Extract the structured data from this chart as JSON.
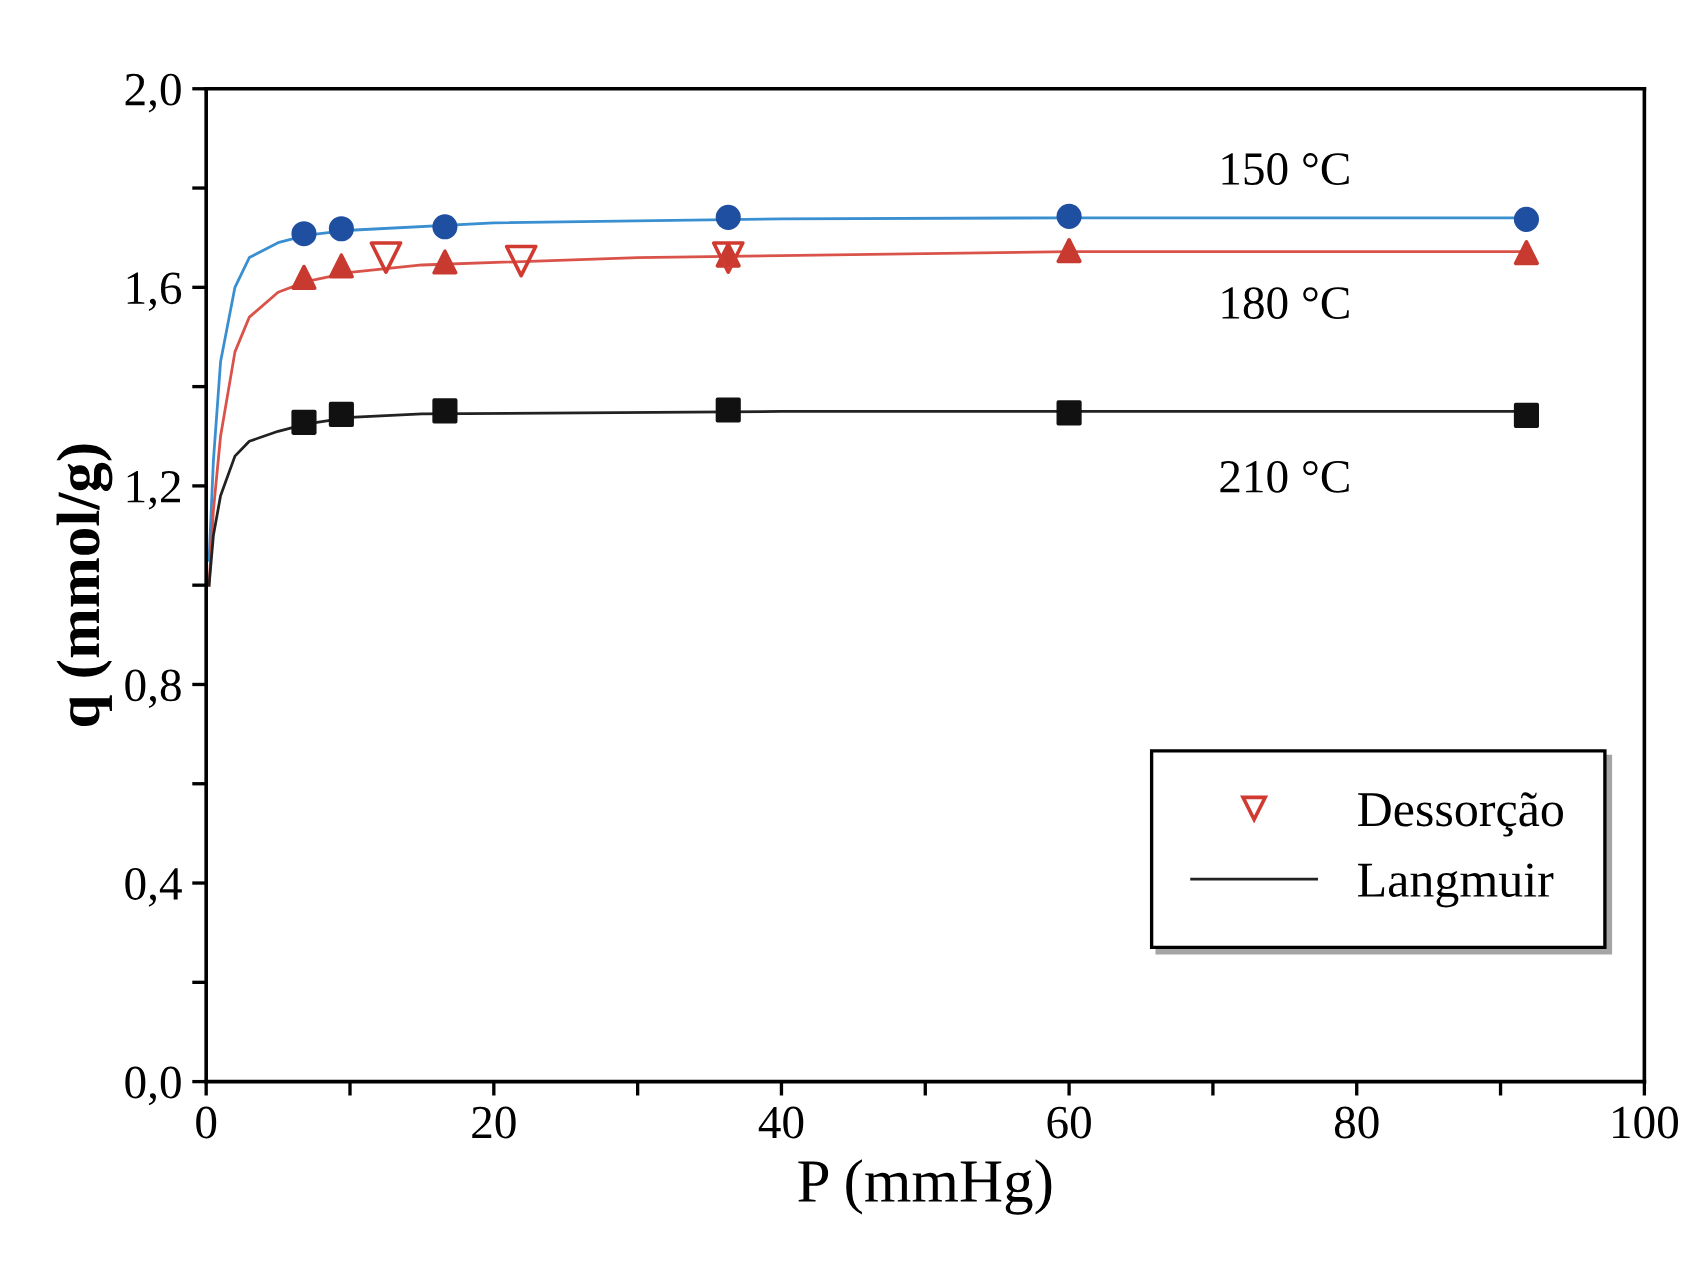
{
  "chart_data": {
    "type": "scatter",
    "xlabel": "P (mmHg)",
    "ylabel": "q (mmol/g)",
    "xlim": [
      0,
      100
    ],
    "xticks": [
      0,
      {
        "value": 10,
        "label": null
      },
      20,
      {
        "value": 30,
        "label": null
      },
      40,
      {
        "value": 50,
        "label": null
      },
      60,
      {
        "value": 70,
        "label": null
      },
      80,
      {
        "value": 90,
        "label": null
      },
      100
    ],
    "ylim": [
      0,
      2.0
    ],
    "yticks": [
      {
        "value": 0,
        "label": "0,0"
      },
      {
        "value": 0.2,
        "label": null
      },
      {
        "value": 0.4,
        "label": "0,4"
      },
      {
        "value": 0.6,
        "label": null
      },
      {
        "value": 0.8,
        "label": "0,8"
      },
      {
        "value": 1.0,
        "label": null
      },
      {
        "value": 1.2,
        "label": "1,2"
      },
      {
        "value": 1.4,
        "label": null
      },
      {
        "value": 1.6,
        "label": "1,6"
      },
      {
        "value": 1.8,
        "label": null
      },
      {
        "value": 2.0,
        "label": "2,0"
      }
    ],
    "grid": false,
    "legend": "bottom right",
    "series": [
      {
        "name": "Dessorção",
        "color": "#d03a30",
        "marker": "triangle_down",
        "x": [
          12.5,
          21.9,
          36.3
        ],
        "values": [
          1.66,
          1.653,
          1.66
        ]
      },
      {
        "type": "line",
        "color": "#3a8fd0",
        "marker": "none",
        "line_style": "solid",
        "x": [
          0.2,
          0.5,
          1,
          2,
          3,
          5,
          7,
          10,
          20,
          40,
          60,
          92
        ],
        "values": [
          1.05,
          1.25,
          1.45,
          1.6,
          1.66,
          1.69,
          1.705,
          1.715,
          1.73,
          1.738,
          1.74,
          1.74
        ]
      },
      {
        "type": "line",
        "color": "#d9534a",
        "marker": "none",
        "line_style": "solid",
        "x": [
          0.2,
          0.5,
          1,
          2,
          3,
          5,
          7,
          10,
          15,
          30,
          60,
          92
        ],
        "values": [
          1.0,
          1.15,
          1.3,
          1.47,
          1.54,
          1.59,
          1.612,
          1.63,
          1.645,
          1.66,
          1.672,
          1.672
        ]
      },
      {
        "type": "line",
        "name": "Langmuir",
        "color": "#222222",
        "marker": "none",
        "line_style": "solid",
        "x": [
          0.2,
          0.5,
          1,
          2,
          3,
          5,
          7,
          10,
          15,
          40,
          92
        ],
        "values": [
          1.0,
          1.1,
          1.18,
          1.26,
          1.29,
          1.31,
          1.325,
          1.338,
          1.345,
          1.35,
          1.35
        ]
      },
      {
        "color": "#1f4fa0",
        "marker": "circle",
        "x": [
          6.8,
          9.4,
          16.6,
          36.3,
          60.0,
          91.8
        ],
        "values": [
          1.708,
          1.718,
          1.722,
          1.741,
          1.743,
          1.737
        ]
      },
      {
        "color": "#c83a30",
        "marker": "triangle",
        "x": [
          6.8,
          9.4,
          16.6,
          36.3,
          60.0,
          91.8
        ],
        "values": [
          1.62,
          1.643,
          1.651,
          1.665,
          1.674,
          1.67
        ]
      },
      {
        "color": "#111111",
        "marker": "square",
        "x": [
          6.8,
          9.4,
          16.6,
          36.3,
          60.0,
          91.8
        ],
        "values": [
          1.328,
          1.344,
          1.351,
          1.353,
          1.347,
          1.342
        ]
      }
    ],
    "annotations": [
      "150 °C",
      "180 °C",
      "210 °C"
    ]
  }
}
